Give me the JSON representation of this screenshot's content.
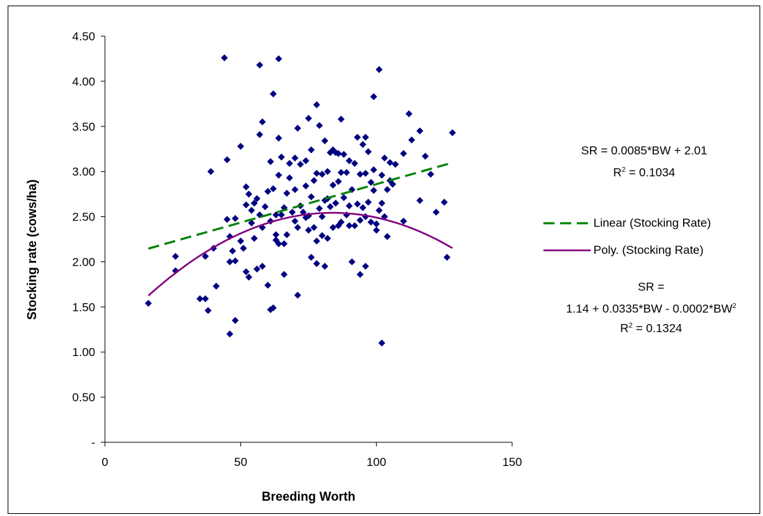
{
  "chart_data": {
    "type": "scatter",
    "xlabel": "Breeding Worth",
    "ylabel": "Stocking rate (cows/ha)",
    "xlim": [
      0,
      150
    ],
    "ylim": [
      0,
      4.5
    ],
    "x_ticks": [
      "0",
      "50",
      "100",
      "150"
    ],
    "y_ticks": [
      "-",
      "0.50",
      "1.00",
      "1.50",
      "2.00",
      "2.50",
      "3.00",
      "3.50",
      "4.00",
      "4.50"
    ],
    "grid": false,
    "legend_position": "right",
    "colors": {
      "points": "#000080",
      "linear": "#008000",
      "poly": "#800080"
    },
    "series": [
      {
        "marker": "diamond",
        "points": [
          [
            16,
            1.54
          ],
          [
            26,
            2.06
          ],
          [
            26,
            1.9
          ],
          [
            35,
            1.59
          ],
          [
            37,
            2.06
          ],
          [
            37,
            1.59
          ],
          [
            38,
            1.46
          ],
          [
            39,
            3.0
          ],
          [
            40,
            2.15
          ],
          [
            41,
            1.73
          ],
          [
            44,
            4.26
          ],
          [
            45,
            3.13
          ],
          [
            45,
            2.47
          ],
          [
            46,
            2.28
          ],
          [
            46,
            2.0
          ],
          [
            46,
            1.2
          ],
          [
            47,
            2.12
          ],
          [
            48,
            2.48
          ],
          [
            48,
            2.01
          ],
          [
            48,
            1.35
          ],
          [
            50,
            3.28
          ],
          [
            50,
            2.23
          ],
          [
            51,
            2.15
          ],
          [
            52,
            2.83
          ],
          [
            52,
            2.63
          ],
          [
            52,
            1.89
          ],
          [
            53,
            2.75
          ],
          [
            53,
            1.83
          ],
          [
            54,
            2.57
          ],
          [
            54,
            2.43
          ],
          [
            55,
            2.65
          ],
          [
            55,
            2.26
          ],
          [
            56,
            2.7
          ],
          [
            56,
            1.92
          ],
          [
            57,
            4.18
          ],
          [
            57,
            3.41
          ],
          [
            57,
            2.52
          ],
          [
            58,
            3.55
          ],
          [
            58,
            2.38
          ],
          [
            58,
            1.95
          ],
          [
            59,
            2.61
          ],
          [
            60,
            2.78
          ],
          [
            60,
            1.74
          ],
          [
            61,
            3.11
          ],
          [
            61,
            2.45
          ],
          [
            61,
            1.47
          ],
          [
            62,
            3.86
          ],
          [
            62,
            2.81
          ],
          [
            62,
            1.49
          ],
          [
            63,
            2.52
          ],
          [
            63,
            2.3
          ],
          [
            63,
            2.24
          ],
          [
            64,
            4.25
          ],
          [
            64,
            3.37
          ],
          [
            64,
            2.96
          ],
          [
            64,
            2.2
          ],
          [
            65,
            3.16
          ],
          [
            65,
            2.52
          ],
          [
            66,
            2.6
          ],
          [
            66,
            2.2
          ],
          [
            66,
            1.86
          ],
          [
            67,
            2.76
          ],
          [
            67,
            2.3
          ],
          [
            68,
            3.09
          ],
          [
            68,
            2.93
          ],
          [
            69,
            2.55
          ],
          [
            70,
            3.15
          ],
          [
            70,
            2.8
          ],
          [
            70,
            2.45
          ],
          [
            71,
            3.48
          ],
          [
            71,
            2.38
          ],
          [
            71,
            1.63
          ],
          [
            72,
            3.08
          ],
          [
            72,
            2.62
          ],
          [
            73,
            2.55
          ],
          [
            74,
            3.12
          ],
          [
            74,
            2.84
          ],
          [
            74,
            2.49
          ],
          [
            75,
            3.59
          ],
          [
            75,
            2.51
          ],
          [
            75,
            2.35
          ],
          [
            76,
            3.24
          ],
          [
            76,
            2.72
          ],
          [
            76,
            2.05
          ],
          [
            77,
            2.9
          ],
          [
            77,
            2.38
          ],
          [
            78,
            3.74
          ],
          [
            78,
            2.98
          ],
          [
            78,
            2.23
          ],
          [
            78,
            1.98
          ],
          [
            79,
            3.51
          ],
          [
            79,
            2.59
          ],
          [
            80,
            2.97
          ],
          [
            80,
            2.5
          ],
          [
            80,
            2.29
          ],
          [
            81,
            3.34
          ],
          [
            81,
            2.68
          ],
          [
            81,
            1.95
          ],
          [
            82,
            3.0
          ],
          [
            82,
            2.7
          ],
          [
            82,
            2.26
          ],
          [
            83,
            3.21
          ],
          [
            83,
            2.61
          ],
          [
            84,
            3.24
          ],
          [
            84,
            2.85
          ],
          [
            84,
            2.38
          ],
          [
            85,
            3.21
          ],
          [
            85,
            2.65
          ],
          [
            86,
            3.2
          ],
          [
            86,
            2.89
          ],
          [
            86,
            2.4
          ],
          [
            87,
            3.58
          ],
          [
            87,
            2.99
          ],
          [
            87,
            2.44
          ],
          [
            88,
            3.19
          ],
          [
            88,
            2.71
          ],
          [
            89,
            2.99
          ],
          [
            89,
            2.52
          ],
          [
            90,
            3.12
          ],
          [
            90,
            2.62
          ],
          [
            90,
            2.4
          ],
          [
            91,
            2.8
          ],
          [
            91,
            2.0
          ],
          [
            92,
            3.09
          ],
          [
            92,
            2.4
          ],
          [
            93,
            3.38
          ],
          [
            93,
            2.64
          ],
          [
            94,
            2.97
          ],
          [
            94,
            2.46
          ],
          [
            94,
            1.86
          ],
          [
            95,
            3.3
          ],
          [
            95,
            2.6
          ],
          [
            96,
            3.38
          ],
          [
            96,
            2.98
          ],
          [
            96,
            2.5
          ],
          [
            96,
            1.95
          ],
          [
            97,
            3.22
          ],
          [
            97,
            2.66
          ],
          [
            98,
            2.88
          ],
          [
            98,
            2.44
          ],
          [
            99,
            3.83
          ],
          [
            99,
            3.02
          ],
          [
            99,
            2.79
          ],
          [
            100,
            2.42
          ],
          [
            100,
            2.35
          ],
          [
            101,
            4.13
          ],
          [
            101,
            2.57
          ],
          [
            102,
            2.96
          ],
          [
            102,
            2.65
          ],
          [
            102,
            1.1
          ],
          [
            103,
            3.15
          ],
          [
            103,
            2.5
          ],
          [
            104,
            2.8
          ],
          [
            104,
            2.28
          ],
          [
            105,
            3.1
          ],
          [
            105,
            2.9
          ],
          [
            106,
            2.86
          ],
          [
            107,
            3.08
          ],
          [
            110,
            3.2
          ],
          [
            110,
            2.45
          ],
          [
            112,
            3.64
          ],
          [
            113,
            3.35
          ],
          [
            116,
            3.45
          ],
          [
            116,
            2.68
          ],
          [
            118,
            3.17
          ],
          [
            120,
            2.97
          ],
          [
            122,
            2.55
          ],
          [
            125,
            2.66
          ],
          [
            126,
            2.05
          ],
          [
            128,
            3.43
          ]
        ]
      }
    ],
    "trendlines": {
      "linear": {
        "label": "Linear (Stocking Rate)",
        "intercept": 2.01,
        "slope": 0.0085,
        "x_range": [
          16,
          128
        ]
      },
      "poly": {
        "label": "Poly. (Stocking Rate)",
        "c0": 1.14,
        "c1": 0.0335,
        "c2": -0.0002,
        "x_range": [
          16,
          128
        ]
      }
    },
    "annotations": {
      "linear_eq": "SR = 0.0085*BW + 2.01",
      "linear_r2_prefix": "R",
      "linear_r2_sup": "2",
      "linear_r2_value": " = 0.1034",
      "poly_eq_line1": "SR =",
      "poly_eq_line2_main": "1.14 + 0.0335*BW - 0.0002*BW",
      "poly_eq_line2_sup": "2",
      "poly_r2_prefix": "R",
      "poly_r2_sup": "2",
      "poly_r2_value": " = 0.1324"
    }
  }
}
